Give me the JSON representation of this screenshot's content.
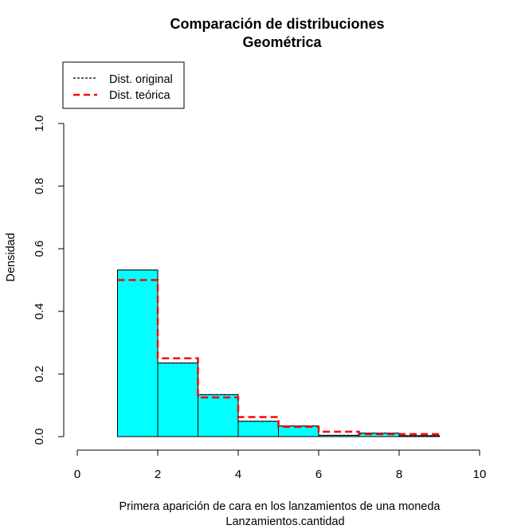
{
  "chart_data": {
    "type": "histogram",
    "title": "Comparación de distribuciones",
    "subtitle": "Geométrica",
    "xlabel": "Primera aparición de cara en los lanzamientos de una moneda",
    "xlabel2": "Lanzamientos.cantidad",
    "ylabel": "Densidad",
    "xlim": [
      0,
      10
    ],
    "ylim": [
      0,
      1
    ],
    "x_ticks": [
      "0",
      "2",
      "4",
      "6",
      "8",
      "10"
    ],
    "y_ticks": [
      "0.0",
      "0.2",
      "0.4",
      "0.6",
      "0.8",
      "1.0"
    ],
    "bins": [
      {
        "from": 1,
        "to": 2,
        "density": 0.532
      },
      {
        "from": 2,
        "to": 3,
        "density": 0.235
      },
      {
        "from": 3,
        "to": 4,
        "density": 0.134
      },
      {
        "from": 4,
        "to": 5,
        "density": 0.049
      },
      {
        "from": 5,
        "to": 6,
        "density": 0.034
      },
      {
        "from": 6,
        "to": 7,
        "density": 0.004
      },
      {
        "from": 7,
        "to": 8,
        "density": 0.011
      },
      {
        "from": 8,
        "to": 9,
        "density": 0.003
      }
    ],
    "original_step": [
      0.532,
      0.235,
      0.134,
      0.049,
      0.034,
      0.004,
      0.011,
      0.003
    ],
    "theoretical_step": [
      0.5,
      0.25,
      0.125,
      0.0625,
      0.03125,
      0.015625,
      0.0078125,
      0.0078125
    ],
    "bar_color": "#00ffff",
    "original_color": "#000000",
    "theoretical_color": "#ff0000",
    "legend": {
      "placement": "top-left",
      "entries": [
        {
          "label": "Dist. original",
          "color": "#000000",
          "style": "dotted"
        },
        {
          "label": "Dist. teórica",
          "color": "#ff0000",
          "style": "dashed"
        }
      ]
    }
  }
}
